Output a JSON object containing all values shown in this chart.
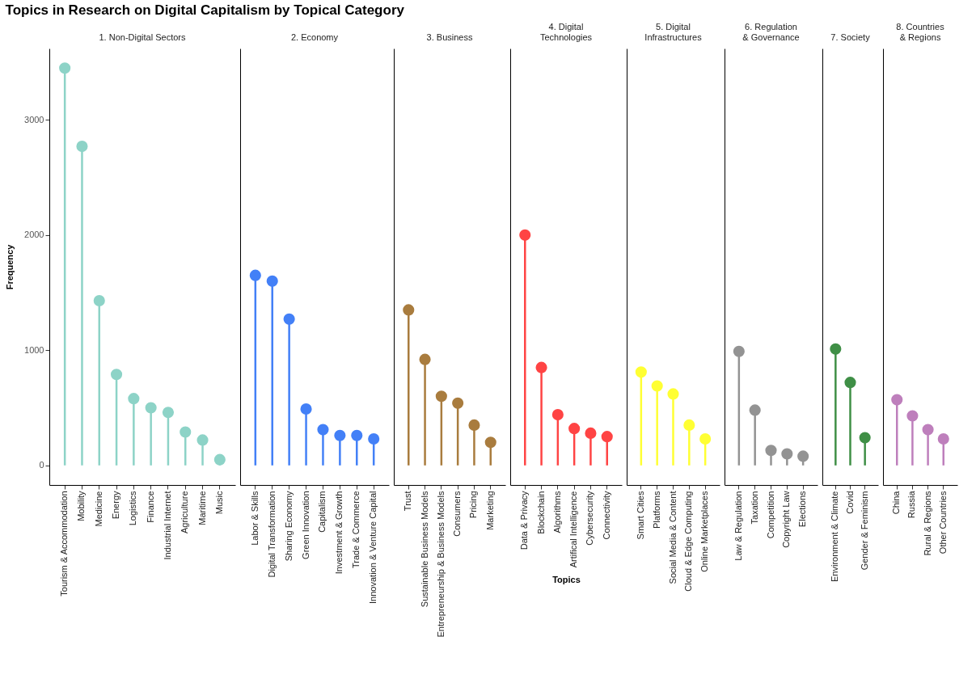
{
  "chart_data": [
    {
      "type": "lollipop",
      "title": "Topics in Research on Digital Capitalism by Topical Category",
      "subtitle": "1. Non-Digital Sectors",
      "ylabel": "Frequency",
      "categories": [
        "Tourism & Accommodation",
        "Mobility",
        "Medicine",
        "Energy",
        "Logistics",
        "Finance",
        "Industrial Internet",
        "Agriculture",
        "Maritime",
        "Music"
      ],
      "values": [
        3450,
        2770,
        1430,
        790,
        580,
        500,
        460,
        290,
        220,
        50
      ],
      "color": "#8dd3c7",
      "ylim": [
        -170,
        3620
      ],
      "yticks": [
        0,
        1000,
        2000,
        3000
      ],
      "marker": "circle"
    },
    {
      "type": "lollipop",
      "subtitle": "2. Economy",
      "categories": [
        "Labor & Skills",
        "Digital Transformation",
        "Sharing Economy",
        "Green Innovation",
        "Capitalism",
        "Investment & Growth",
        "Trade & Commerce",
        "Innovation & Venture Capital"
      ],
      "values": [
        1650,
        1600,
        1270,
        490,
        310,
        260,
        260,
        230
      ],
      "color": "#4380f7",
      "ylim": [
        -170,
        3620
      ],
      "tick_labels": "x",
      "marker": "circle"
    },
    {
      "type": "lollipop",
      "subtitle": "3. Business",
      "categories": [
        "Trust",
        "Sustainable Business Models",
        "Entrepreneurship & Business Models",
        "Consumers",
        "Pricing",
        "Marketing"
      ],
      "values": [
        1350,
        920,
        600,
        540,
        350,
        200
      ],
      "color": "#a97c3e",
      "ylim": [
        -170,
        3620
      ],
      "tick_labels": "x",
      "marker": "circle"
    },
    {
      "type": "lollipop",
      "subtitle": "4. Digital Technologies",
      "xlabel": "Topics",
      "categories": [
        "Data & Privacy",
        "Blockchain",
        "Algorithms",
        "Artifical Intelligence",
        "Cybersecurity",
        "Connectivity"
      ],
      "values": [
        2000,
        850,
        440,
        320,
        280,
        250
      ],
      "color": "#ff4444",
      "ylim": [
        -170,
        3620
      ],
      "tick_labels": "x",
      "marker": "circle"
    },
    {
      "type": "lollipop",
      "subtitle": "5. Digital Infrastructures",
      "categories": [
        "Smart Cities",
        "Platforms",
        "Social Media & Content",
        "Cloud & Edge Computing",
        "Online Marketplaces"
      ],
      "values": [
        810,
        690,
        620,
        350,
        230
      ],
      "color": "#ffff33",
      "ylim": [
        -170,
        3620
      ],
      "tick_labels": "x",
      "marker": "circle"
    },
    {
      "type": "lollipop",
      "subtitle": "6. Regulation & Governance",
      "categories": [
        "Law & Regulation",
        "Taxation",
        "Competition",
        "Copyright Law",
        "Elections"
      ],
      "values": [
        990,
        480,
        130,
        100,
        80
      ],
      "color": "#939393",
      "ylim": [
        -170,
        3620
      ],
      "tick_labels": "x",
      "marker": "circle"
    },
    {
      "type": "lollipop",
      "subtitle": "7. Society",
      "categories": [
        "Environment & Climate",
        "Covid",
        "Gender & Feminism"
      ],
      "values": [
        1010,
        720,
        240
      ],
      "color": "#3f8f46",
      "ylim": [
        -170,
        3620
      ],
      "tick_labels": "x",
      "marker": "circle"
    },
    {
      "type": "lollipop",
      "subtitle": "8. Countries & Regions",
      "categories": [
        "China",
        "Russia",
        "Rural & Regions",
        "Other Countries"
      ],
      "values": [
        570,
        430,
        310,
        230
      ],
      "color": "#be7fbc",
      "ylim": [
        -170,
        3620
      ],
      "tick_labels": "x",
      "marker": "circle"
    }
  ]
}
